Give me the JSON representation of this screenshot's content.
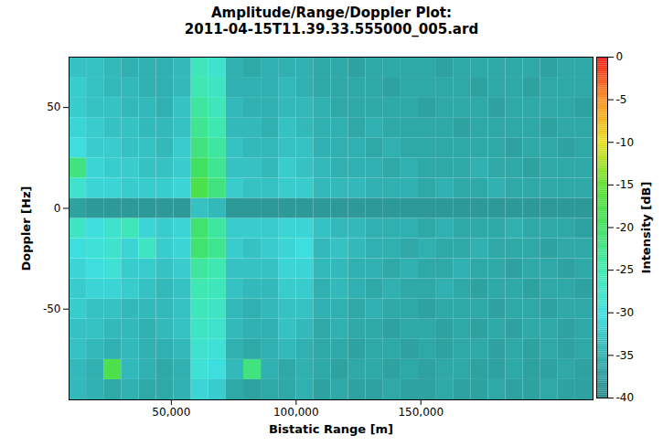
{
  "chart_data": {
    "type": "heatmap",
    "title": "Amplitude/Range/Doppler Plot:",
    "subtitle": "2011-04-15T11.39.33.555000_005.ard",
    "x_label": "Bistatic Range [m]",
    "y_label": "Doppler [Hz]",
    "xlim": [
      9000,
      219000
    ],
    "xticks": [
      {
        "value": 50000,
        "label": "50,000"
      },
      {
        "value": 100000,
        "label": "100,000"
      },
      {
        "value": 150000,
        "label": "150,000"
      }
    ],
    "ylim": [
      -95,
      75
    ],
    "yticks": [
      -50,
      0,
      50
    ],
    "grid": false,
    "x_bins": [
      9000,
      16000,
      23000,
      30000,
      37000,
      44000,
      51000,
      58000,
      65000,
      72000,
      79000,
      86000,
      93000,
      100000,
      107000,
      114000,
      121000,
      128000,
      135000,
      142000,
      149000,
      156000,
      163000,
      170000,
      177000,
      184000,
      191000,
      198000,
      205000,
      212000,
      219000
    ],
    "y_bins": [
      -95,
      -85,
      -75,
      -65,
      -55,
      -45,
      -35,
      -25,
      -15,
      -5,
      5,
      15,
      25,
      35,
      45,
      55,
      65,
      75
    ],
    "values": [
      [
        -34,
        -35,
        -36,
        -35,
        -36,
        -36,
        -35,
        -31,
        -32,
        -36,
        -37,
        -36,
        -36,
        -35,
        -37,
        -36,
        -37,
        -37,
        -36,
        -37,
        -37,
        -36,
        -37,
        -37,
        -36,
        -37,
        -37,
        -36,
        -37,
        -37
      ],
      [
        -34,
        -35,
        -18,
        -34,
        -35,
        -36,
        -35,
        -29,
        -30,
        -34,
        -22,
        -35,
        -36,
        -35,
        -36,
        -37,
        -36,
        -36,
        -37,
        -36,
        -37,
        -36,
        -36,
        -37,
        -37,
        -36,
        -37,
        -37,
        -36,
        -37
      ],
      [
        -33,
        -34,
        -35,
        -34,
        -35,
        -35,
        -34,
        -28,
        -29,
        -35,
        -36,
        -35,
        -34,
        -35,
        -36,
        -36,
        -37,
        -36,
        -36,
        -37,
        -36,
        -37,
        -36,
        -36,
        -37,
        -36,
        -37,
        -36,
        -37,
        -36
      ],
      [
        -33,
        -33,
        -34,
        -34,
        -35,
        -34,
        -33,
        -27,
        -28,
        -34,
        -35,
        -35,
        -33,
        -34,
        -36,
        -35,
        -36,
        -36,
        -37,
        -36,
        -36,
        -37,
        -36,
        -37,
        -36,
        -37,
        -36,
        -36,
        -37,
        -36
      ],
      [
        -32,
        -33,
        -33,
        -34,
        -34,
        -34,
        -33,
        -26,
        -27,
        -34,
        -35,
        -34,
        -33,
        -33,
        -35,
        -35,
        -36,
        -35,
        -36,
        -36,
        -37,
        -36,
        -36,
        -36,
        -37,
        -36,
        -36,
        -37,
        -36,
        -36
      ],
      [
        -32,
        -31,
        -31,
        -32,
        -33,
        -34,
        -33,
        -25,
        -26,
        -33,
        -34,
        -34,
        -32,
        -32,
        -35,
        -34,
        -35,
        -36,
        -35,
        -36,
        -36,
        -35,
        -36,
        -37,
        -36,
        -36,
        -37,
        -36,
        -36,
        -37
      ],
      [
        -31,
        -30,
        -29,
        -32,
        -32,
        -33,
        -32,
        -24,
        -25,
        -33,
        -33,
        -33,
        -31,
        -31,
        -34,
        -34,
        -35,
        -35,
        -36,
        -35,
        -36,
        -36,
        -35,
        -36,
        -36,
        -37,
        -36,
        -36,
        -37,
        -36
      ],
      [
        -30,
        -29,
        -28,
        -31,
        -27,
        -32,
        -31,
        -21,
        -23,
        -32,
        -33,
        -32,
        -31,
        -30,
        -34,
        -33,
        -34,
        -35,
        -35,
        -36,
        -35,
        -36,
        -36,
        -35,
        -36,
        -36,
        -36,
        -37,
        -36,
        -36
      ],
      [
        -27,
        -30,
        -28,
        -26,
        -31,
        -32,
        -31,
        -21,
        -24,
        -32,
        -32,
        -32,
        -31,
        -31,
        -33,
        -34,
        -34,
        -35,
        -35,
        -35,
        -36,
        -35,
        -36,
        -36,
        -36,
        -35,
        -36,
        -36,
        -36,
        -37
      ],
      [
        -37,
        -38,
        -38,
        -38,
        -38,
        -38,
        -38,
        -33,
        -34,
        -38,
        -38,
        -38,
        -38,
        -38,
        -38,
        -38,
        -38,
        -38,
        -38,
        -38,
        -38,
        -38,
        -38,
        -38,
        -38,
        -38,
        -38,
        -38,
        -38,
        -38
      ],
      [
        -28,
        -31,
        -31,
        -32,
        -32,
        -32,
        -31,
        -18,
        -22,
        -32,
        -33,
        -33,
        -32,
        -32,
        -34,
        -34,
        -34,
        -35,
        -35,
        -35,
        -36,
        -35,
        -36,
        -36,
        -35,
        -36,
        -36,
        -36,
        -36,
        -36
      ],
      [
        -22,
        -31,
        -32,
        -32,
        -33,
        -33,
        -32,
        -20,
        -23,
        -33,
        -33,
        -34,
        -32,
        -33,
        -34,
        -35,
        -35,
        -35,
        -36,
        -35,
        -36,
        -36,
        -36,
        -35,
        -36,
        -36,
        -37,
        -36,
        -36,
        -36
      ],
      [
        -30,
        -32,
        -32,
        -33,
        -33,
        -34,
        -32,
        -22,
        -24,
        -33,
        -34,
        -34,
        -33,
        -33,
        -35,
        -35,
        -35,
        -36,
        -35,
        -36,
        -36,
        -36,
        -36,
        -36,
        -36,
        -37,
        -36,
        -36,
        -37,
        -36
      ],
      [
        -31,
        -32,
        -33,
        -33,
        -34,
        -34,
        -33,
        -23,
        -25,
        -34,
        -34,
        -35,
        -33,
        -34,
        -35,
        -35,
        -36,
        -35,
        -36,
        -36,
        -36,
        -36,
        -37,
        -36,
        -36,
        -36,
        -36,
        -37,
        -36,
        -36
      ],
      [
        -32,
        -33,
        -33,
        -34,
        -34,
        -35,
        -33,
        -24,
        -26,
        -34,
        -35,
        -35,
        -34,
        -34,
        -35,
        -36,
        -36,
        -36,
        -36,
        -36,
        -37,
        -36,
        -36,
        -36,
        -37,
        -36,
        -36,
        -36,
        -36,
        -37
      ],
      [
        -32,
        -33,
        -34,
        -34,
        -35,
        -35,
        -34,
        -25,
        -27,
        -35,
        -35,
        -35,
        -34,
        -35,
        -36,
        -36,
        -36,
        -36,
        -37,
        -36,
        -36,
        -36,
        -36,
        -37,
        -36,
        -36,
        -37,
        -36,
        -36,
        -36
      ],
      [
        -33,
        -33,
        -34,
        -35,
        -35,
        -35,
        -34,
        -26,
        -28,
        -35,
        -36,
        -35,
        -35,
        -35,
        -36,
        -36,
        -37,
        -36,
        -36,
        -36,
        -36,
        -37,
        -36,
        -36,
        -36,
        -36,
        -36,
        -37,
        -36,
        -36
      ]
    ],
    "colorbar": {
      "label": "Intensity [dB]",
      "range": [
        -40,
        0
      ],
      "ticks": [
        0,
        -5,
        -10,
        -15,
        -20,
        -25,
        -30,
        -35,
        -40
      ]
    }
  }
}
